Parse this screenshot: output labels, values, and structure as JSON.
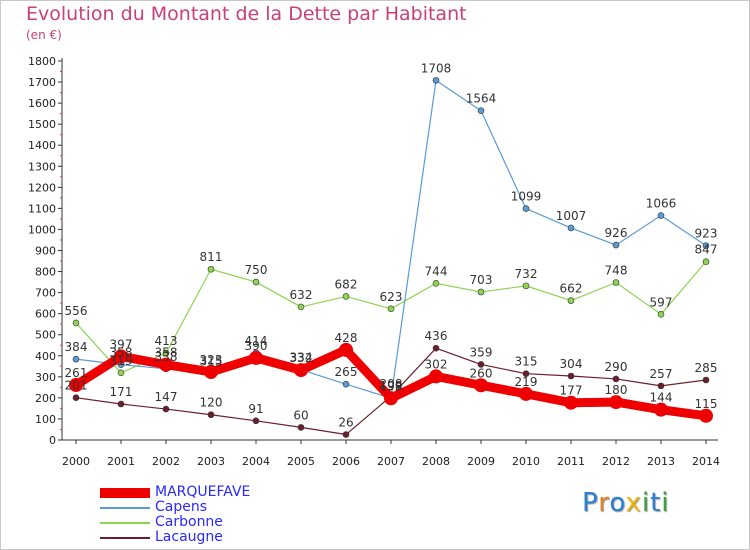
{
  "chart_data": {
    "type": "line",
    "title": "Evolution du Montant de la Dette par Habitant",
    "subtitle": "(en €)",
    "x": [
      "2000",
      "2001",
      "2002",
      "2003",
      "2004",
      "2005",
      "2006",
      "2007",
      "2008",
      "2009",
      "2010",
      "2011",
      "2012",
      "2013",
      "2014"
    ],
    "ylim": [
      0,
      1800
    ],
    "yticks": [
      0,
      100,
      200,
      300,
      400,
      500,
      600,
      700,
      800,
      900,
      1000,
      1100,
      1200,
      1300,
      1400,
      1500,
      1600,
      1700,
      1800
    ],
    "grid": false,
    "legend_position": "bottom-left",
    "series": [
      {
        "name": "Lacaugne",
        "color": "#6b1f2a",
        "values": [
          201,
          171,
          147,
          120,
          91,
          60,
          26,
          208,
          436,
          359,
          315,
          304,
          290,
          257,
          285
        ]
      },
      {
        "name": "Carbonne",
        "color": "#8ed452",
        "values": [
          556,
          319,
          413,
          811,
          750,
          632,
          682,
          623,
          744,
          703,
          732,
          662,
          748,
          597,
          847
        ]
      },
      {
        "name": "Capens",
        "color": "#5b9bd5",
        "values": [
          384,
          358,
          338,
          315,
          414,
          334,
          265,
          199,
          1708,
          1564,
          1099,
          1007,
          926,
          1066,
          923
        ]
      },
      {
        "name": "MARQUEFAVE",
        "color": "#ee0000",
        "values": [
          261,
          397,
          358,
          323,
          390,
          332,
          428,
          198,
          302,
          260,
          219,
          177,
          180,
          144,
          115
        ]
      }
    ]
  },
  "legend_items": [
    {
      "name": "MARQUEFAVE",
      "color": "#ee0000",
      "text_color": "#2828ff",
      "width": 10
    },
    {
      "name": "Capens",
      "color": "#5b9bd5",
      "text_color": "#2828ff",
      "width": 2
    },
    {
      "name": "Carbonne",
      "color": "#8ed452",
      "text_color": "#2828ff",
      "width": 2
    },
    {
      "name": "Lacaugne",
      "color": "#6b1f2a",
      "text_color": "#2828ff",
      "width": 2
    }
  ],
  "logo": {
    "letters": [
      "P",
      "r",
      "o",
      "x",
      "i",
      "t",
      "i"
    ],
    "colors": [
      "#2a7fd4",
      "#e8821e",
      "#2a7fd4",
      "#f0b400",
      "#3aa13a",
      "#2a7fd4",
      "#3aa13a"
    ]
  }
}
